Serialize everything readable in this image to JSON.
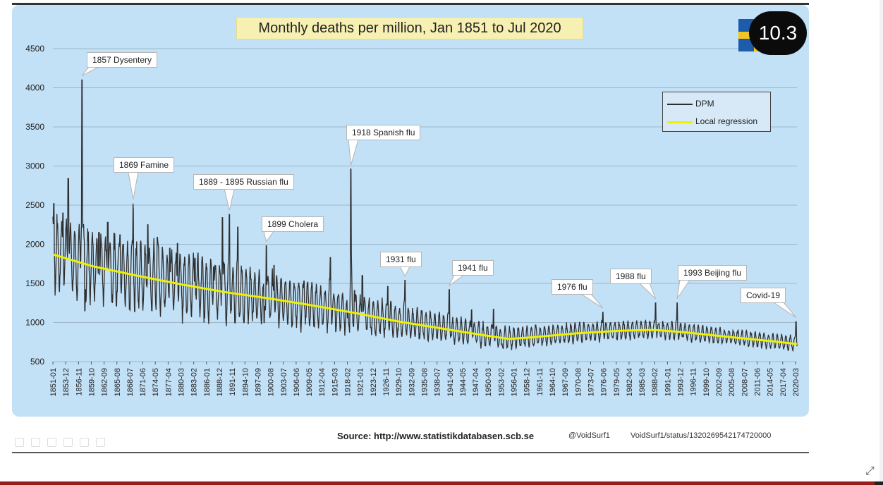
{
  "chart_data": {
    "type": "line",
    "title": "Monthly deaths per million, Jan 1851 to Jul 2020",
    "xlabel": "",
    "ylabel": "",
    "ylim": [
      500,
      4500
    ],
    "yticks": [
      500,
      1000,
      1500,
      2000,
      2500,
      3000,
      3500,
      4000,
      4500
    ],
    "x_start": 1851,
    "x_end": 2020.5,
    "x_tick_labels": [
      "1851-01",
      "1853-12",
      "1856-11",
      "1859-10",
      "1862-09",
      "1865-08",
      "1868-07",
      "1871-06",
      "1874-05",
      "1877-04",
      "1880-03",
      "1883-02",
      "1886-01",
      "1888-12",
      "1891-11",
      "1894-10",
      "1897-09",
      "1900-08",
      "1903-07",
      "1906-06",
      "1909-05",
      "1912-04",
      "1915-03",
      "1918-02",
      "1921-01",
      "1923-12",
      "1926-11",
      "1929-10",
      "1932-09",
      "1935-08",
      "1938-07",
      "1941-06",
      "1944-05",
      "1947-04",
      "1950-03",
      "1953-02",
      "1956-01",
      "1958-12",
      "1961-11",
      "1964-10",
      "1967-09",
      "1970-08",
      "1973-07",
      "1976-06",
      "1979-05",
      "1982-04",
      "1985-03",
      "1988-02",
      "1991-01",
      "1993-12",
      "1996-11",
      "1999-10",
      "2002-09",
      "2005-08",
      "2008-07",
      "2011-06",
      "2014-05",
      "2017-04",
      "2020-03"
    ],
    "grid": true,
    "legend_position": "top-right",
    "series": [
      {
        "name": "DPM",
        "color": "#2f2f2f",
        "trend_points": [
          [
            1851,
            1880
          ],
          [
            1860,
            1720
          ],
          [
            1870,
            1600
          ],
          [
            1880,
            1500
          ],
          [
            1890,
            1400
          ],
          [
            1900,
            1320
          ],
          [
            1910,
            1230
          ],
          [
            1920,
            1120
          ],
          [
            1930,
            1010
          ],
          [
            1940,
            930
          ],
          [
            1950,
            830
          ],
          [
            1955,
            800
          ],
          [
            1960,
            820
          ],
          [
            1970,
            870
          ],
          [
            1980,
            900
          ],
          [
            1988,
            910
          ],
          [
            1995,
            880
          ],
          [
            2005,
            820
          ],
          [
            2015,
            760
          ],
          [
            2020.5,
            730
          ]
        ],
        "seasonal_amplitude": [
          [
            1851,
            430
          ],
          [
            1880,
            380
          ],
          [
            1900,
            300
          ],
          [
            1920,
            220
          ],
          [
            1940,
            160
          ],
          [
            1960,
            120
          ],
          [
            1990,
            100
          ],
          [
            2020.5,
            85
          ]
        ],
        "peaks": [
          [
            1851.2,
            2520
          ],
          [
            1853.3,
            2400
          ],
          [
            1854.5,
            2840
          ],
          [
            1857.6,
            4100
          ],
          [
            1858.2,
            2380
          ],
          [
            1861.5,
            2150
          ],
          [
            1863.5,
            2280
          ],
          [
            1866.3,
            2120
          ],
          [
            1869.3,
            2520
          ],
          [
            1872.6,
            2250
          ],
          [
            1874.8,
            2090
          ],
          [
            1877.6,
            1950
          ],
          [
            1879.4,
            2010
          ],
          [
            1883.4,
            1820
          ],
          [
            1887.6,
            1710
          ],
          [
            1889.6,
            2340
          ],
          [
            1891.2,
            2380
          ],
          [
            1893.1,
            2220
          ],
          [
            1899.6,
            1980
          ],
          [
            1901.4,
            1730
          ],
          [
            1908.2,
            1530
          ],
          [
            1914.2,
            1830
          ],
          [
            1918.9,
            2960
          ],
          [
            1919.7,
            1410
          ],
          [
            1921.5,
            1600
          ],
          [
            1927.3,
            1460
          ],
          [
            1931.2,
            1540
          ],
          [
            1941.3,
            1420
          ],
          [
            1946.4,
            1160
          ],
          [
            1951.4,
            1170
          ],
          [
            1976.3,
            1130
          ],
          [
            1988.3,
            1250
          ],
          [
            1993.2,
            1250
          ],
          [
            2020.3,
            1010
          ]
        ],
        "dips": [
          [
            1858.3,
            1150
          ],
          [
            1869.6,
            1140
          ],
          [
            1899.1,
            1000
          ],
          [
            1918.1,
            1060
          ],
          [
            1941.8,
            840
          ],
          [
            1953.2,
            720
          ]
        ]
      },
      {
        "name": "Local regression",
        "color": "#eef002",
        "points": [
          [
            1851,
            1870
          ],
          [
            1860,
            1720
          ],
          [
            1870,
            1600
          ],
          [
            1880,
            1490
          ],
          [
            1890,
            1390
          ],
          [
            1900,
            1310
          ],
          [
            1910,
            1220
          ],
          [
            1920,
            1120
          ],
          [
            1930,
            1010
          ],
          [
            1940,
            920
          ],
          [
            1950,
            830
          ],
          [
            1955,
            790
          ],
          [
            1960,
            810
          ],
          [
            1970,
            860
          ],
          [
            1980,
            895
          ],
          [
            1988,
            905
          ],
          [
            1995,
            875
          ],
          [
            2005,
            815
          ],
          [
            2015,
            760
          ],
          [
            2020.5,
            725
          ]
        ]
      }
    ],
    "annotations": [
      {
        "label": "1857 Dysentery",
        "x": 1857.6,
        "y": 4100
      },
      {
        "label": "1869 Famine",
        "x": 1869.3,
        "y": 2520
      },
      {
        "label": "1889 - 1895 Russian flu",
        "x": 1891.2,
        "y": 2380
      },
      {
        "label": "1899 Cholera",
        "x": 1899.6,
        "y": 1980
      },
      {
        "label": "1918 Spanish flu",
        "x": 1918.9,
        "y": 2960
      },
      {
        "label": "1931 flu",
        "x": 1931.2,
        "y": 1540
      },
      {
        "label": "1941 flu",
        "x": 1941.3,
        "y": 1420
      },
      {
        "label": "1976 flu",
        "x": 1976.3,
        "y": 1130
      },
      {
        "label": "1988 flu",
        "x": 1988.3,
        "y": 1250
      },
      {
        "label": "1993 Beijing flu",
        "x": 1993.2,
        "y": 1250
      },
      {
        "label": "Covid-19",
        "x": 2020.3,
        "y": 1010
      }
    ]
  },
  "badge": {
    "number": "10.3"
  },
  "source": "Source: http://www.statistikdatabasen.scb.se",
  "handle": "@VoidSurf1",
  "status_path": "VoidSurf1/status/1320269542174720000",
  "colors": {
    "panel": "#c2e0f6",
    "flag_blue": "#1d5cab",
    "flag_yellow": "#f3c623"
  },
  "icons": [
    "expand-icon"
  ]
}
